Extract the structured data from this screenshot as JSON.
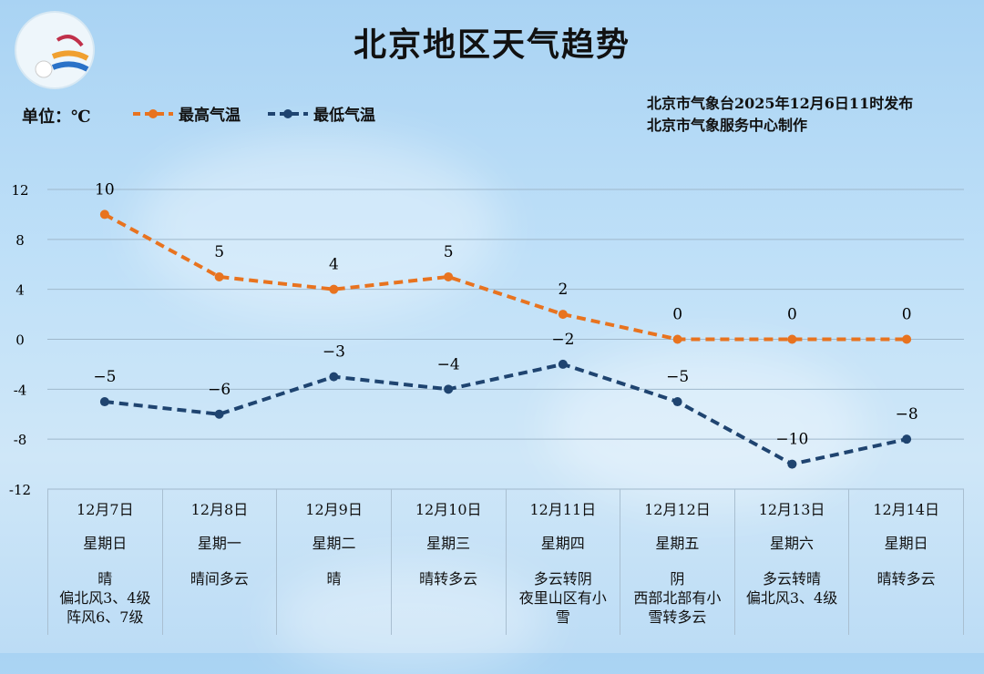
{
  "header": {
    "title": "北京地区天气趋势",
    "unit": "单位：℃",
    "issuer_line1": "北京市气象台2025年12月6日11时发布",
    "issuer_line2": "北京市气象服务中心制作",
    "logo_text": "METEOROLOGICAL SERVICE BEIJING 气象北京"
  },
  "colors": {
    "high": "#e8731f",
    "low": "#1f4470"
  },
  "chart_data": {
    "type": "line",
    "title": "北京地区天气趋势",
    "ylabel": "单位：℃",
    "ylim": [
      -12,
      12
    ],
    "yticks": [
      12,
      8,
      4,
      0,
      -4,
      -8,
      -12
    ],
    "grid": true,
    "legend": "top-left",
    "categories": [
      "12月7日",
      "12月8日",
      "12月9日",
      "12月10日",
      "12月11日",
      "12月12日",
      "12月13日",
      "12月14日"
    ],
    "series": [
      {
        "name": "最高气温",
        "values": [
          10,
          5,
          4,
          5,
          2,
          0,
          0,
          0
        ]
      },
      {
        "name": "最低气温",
        "values": [
          -5,
          -6,
          -3,
          -4,
          -2,
          -5,
          -10,
          -8
        ]
      }
    ]
  },
  "days": [
    {
      "date": "12月7日",
      "weekday": "星期日",
      "weather": [
        "晴",
        "偏北风3、4级",
        "阵风6、7级"
      ]
    },
    {
      "date": "12月8日",
      "weekday": "星期一",
      "weather": [
        "晴间多云"
      ]
    },
    {
      "date": "12月9日",
      "weekday": "星期二",
      "weather": [
        "晴"
      ]
    },
    {
      "date": "12月10日",
      "weekday": "星期三",
      "weather": [
        "晴转多云"
      ]
    },
    {
      "date": "12月11日",
      "weekday": "星期四",
      "weather": [
        "多云转阴",
        "夜里山区有小",
        "雪"
      ]
    },
    {
      "date": "12月12日",
      "weekday": "星期五",
      "weather": [
        "阴",
        "西部北部有小",
        "雪转多云"
      ]
    },
    {
      "date": "12月13日",
      "weekday": "星期六",
      "weather": [
        "多云转晴",
        "偏北风3、4级"
      ]
    },
    {
      "date": "12月14日",
      "weekday": "星期日",
      "weather": [
        "晴转多云"
      ]
    }
  ]
}
